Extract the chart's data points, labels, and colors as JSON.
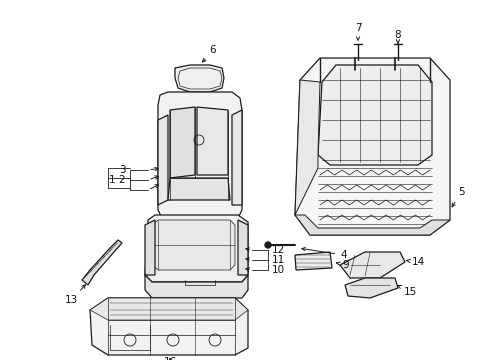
{
  "background_color": "#ffffff",
  "line_color": "#1a1a1a",
  "label_color": "#111111",
  "fig_width": 4.89,
  "fig_height": 3.6,
  "dpi": 100
}
